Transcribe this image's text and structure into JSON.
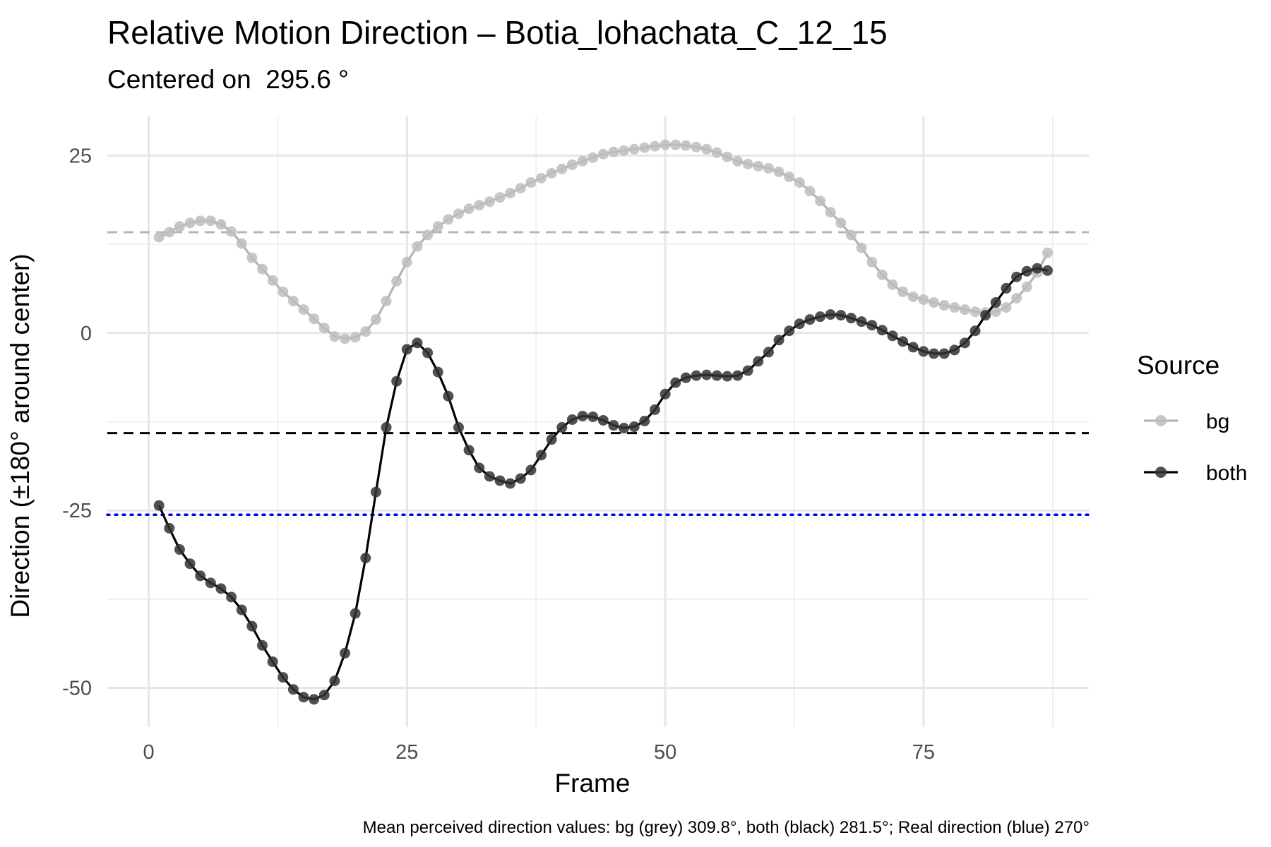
{
  "chart_data": {
    "type": "line",
    "title": "Relative Motion Direction – Botia_lohachata_C_12_15",
    "subtitle": "Centered on  295.6 °",
    "xlabel": "Frame",
    "ylabel": "Direction (±180° around center)",
    "caption": "Mean perceived direction values: bg (grey) 309.8°, both (black) 281.5°; Real direction (blue) 270°",
    "xlim": [
      -4,
      91
    ],
    "ylim": [
      -55.5,
      30.5
    ],
    "x_ticks": [
      0,
      25,
      50,
      75
    ],
    "x_tick_labels": [
      "0",
      "25",
      "50",
      "75"
    ],
    "y_ticks": [
      -50,
      -25,
      0,
      25
    ],
    "y_tick_labels": [
      "-50",
      "-25",
      "0",
      "25"
    ],
    "grid": true,
    "legend": {
      "title": "Source",
      "placement": "right"
    },
    "series": [
      {
        "name": "bg",
        "color": "#aaaaaa",
        "mean_line": 14.2,
        "x": [
          1,
          2,
          3,
          4,
          5,
          6,
          7,
          8,
          9,
          10,
          11,
          12,
          13,
          14,
          15,
          16,
          17,
          18,
          19,
          20,
          21,
          22,
          23,
          24,
          25,
          26,
          27,
          28,
          29,
          30,
          31,
          32,
          33,
          34,
          35,
          36,
          37,
          38,
          39,
          40,
          41,
          42,
          43,
          44,
          45,
          46,
          47,
          48,
          49,
          50,
          51,
          52,
          53,
          54,
          55,
          56,
          57,
          58,
          59,
          60,
          61,
          62,
          63,
          64,
          65,
          66,
          67,
          68,
          69,
          70,
          71,
          72,
          73,
          74,
          75,
          76,
          77,
          78,
          79,
          80,
          81,
          82,
          83,
          84,
          85,
          86,
          87
        ],
        "y": [
          13.5,
          14.2,
          15.0,
          15.5,
          15.8,
          15.8,
          15.3,
          14.3,
          12.6,
          10.6,
          9.0,
          7.4,
          5.8,
          4.5,
          3.3,
          2.0,
          0.7,
          -0.5,
          -0.8,
          -0.6,
          0.2,
          1.9,
          4.5,
          7.3,
          10.0,
          12.2,
          13.8,
          15.0,
          16.0,
          16.8,
          17.5,
          18.0,
          18.5,
          19.1,
          19.7,
          20.4,
          21.2,
          21.8,
          22.5,
          23.1,
          23.7,
          24.2,
          24.7,
          25.2,
          25.5,
          25.7,
          25.9,
          26.1,
          26.3,
          26.5,
          26.5,
          26.4,
          26.2,
          25.9,
          25.4,
          24.8,
          24.2,
          23.8,
          23.5,
          23.2,
          22.7,
          22.0,
          21.2,
          20.0,
          18.6,
          17.0,
          15.5,
          13.8,
          12.0,
          10.0,
          8.2,
          6.8,
          5.8,
          5.1,
          4.7,
          4.3,
          3.9,
          3.6,
          3.3,
          3.0,
          2.9,
          3.0,
          3.6,
          4.9,
          6.5,
          8.5,
          11.3
        ]
      },
      {
        "name": "both",
        "color": "#000000",
        "mean_line": -14.1,
        "x": [
          1,
          2,
          3,
          4,
          5,
          6,
          7,
          8,
          9,
          10,
          11,
          12,
          13,
          14,
          15,
          16,
          17,
          18,
          19,
          20,
          21,
          22,
          23,
          24,
          25,
          26,
          27,
          28,
          29,
          30,
          31,
          32,
          33,
          34,
          35,
          36,
          37,
          38,
          39,
          40,
          41,
          42,
          43,
          44,
          45,
          46,
          47,
          48,
          49,
          50,
          51,
          52,
          53,
          54,
          55,
          56,
          57,
          58,
          59,
          60,
          61,
          62,
          63,
          64,
          65,
          66,
          67,
          68,
          69,
          70,
          71,
          72,
          73,
          74,
          75,
          76,
          77,
          78,
          79,
          80,
          81,
          82,
          83,
          84,
          85,
          86,
          87
        ],
        "y": [
          -24.3,
          -27.5,
          -30.5,
          -32.5,
          -34.2,
          -35.2,
          -36.0,
          -37.2,
          -39.0,
          -41.3,
          -44.0,
          -46.3,
          -48.5,
          -50.2,
          -51.3,
          -51.6,
          -51.0,
          -49.0,
          -45.1,
          -39.5,
          -31.7,
          -22.4,
          -13.3,
          -6.8,
          -2.3,
          -1.4,
          -2.8,
          -5.5,
          -8.9,
          -13.3,
          -16.5,
          -19.0,
          -20.2,
          -20.8,
          -21.2,
          -20.5,
          -19.3,
          -17.2,
          -15.0,
          -13.3,
          -12.2,
          -11.7,
          -11.8,
          -12.3,
          -13.0,
          -13.4,
          -13.2,
          -12.4,
          -10.8,
          -8.6,
          -7.0,
          -6.3,
          -6.0,
          -5.9,
          -6.0,
          -6.1,
          -6.0,
          -5.3,
          -4.0,
          -2.7,
          -1.0,
          0.3,
          1.3,
          1.9,
          2.3,
          2.6,
          2.5,
          2.1,
          1.6,
          1.1,
          0.4,
          -0.4,
          -1.2,
          -2.0,
          -2.6,
          -2.9,
          -2.9,
          -2.4,
          -1.4,
          0.3,
          2.5,
          4.3,
          6.3,
          7.9,
          8.7,
          9.1,
          8.8
        ]
      }
    ],
    "reference_line": {
      "label": "Real direction (blue)",
      "y": -25.6,
      "color": "#0000ee",
      "style": "dotted"
    }
  }
}
